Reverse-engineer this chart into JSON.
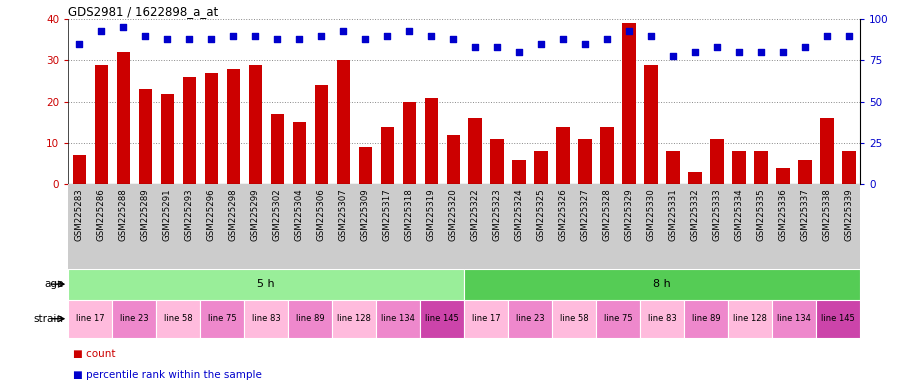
{
  "title": "GDS2981 / 1622898_a_at",
  "samples": [
    "GSM225283",
    "GSM225286",
    "GSM225288",
    "GSM225289",
    "GSM225291",
    "GSM225293",
    "GSM225296",
    "GSM225298",
    "GSM225299",
    "GSM225302",
    "GSM225304",
    "GSM225306",
    "GSM225307",
    "GSM225309",
    "GSM225317",
    "GSM225318",
    "GSM225319",
    "GSM225320",
    "GSM225322",
    "GSM225323",
    "GSM225324",
    "GSM225325",
    "GSM225326",
    "GSM225327",
    "GSM225328",
    "GSM225329",
    "GSM225330",
    "GSM225331",
    "GSM225332",
    "GSM225333",
    "GSM225334",
    "GSM225335",
    "GSM225336",
    "GSM225337",
    "GSM225338",
    "GSM225339"
  ],
  "counts": [
    7,
    29,
    32,
    23,
    22,
    26,
    27,
    28,
    29,
    17,
    15,
    24,
    30,
    9,
    14,
    20,
    21,
    12,
    16,
    11,
    6,
    8,
    14,
    11,
    14,
    39,
    29,
    8,
    3,
    11,
    8,
    8,
    4,
    6,
    16,
    8
  ],
  "percentile": [
    85,
    93,
    95,
    90,
    88,
    88,
    88,
    90,
    90,
    88,
    88,
    90,
    93,
    88,
    90,
    93,
    90,
    88,
    83,
    83,
    80,
    85,
    88,
    85,
    88,
    93,
    90,
    78,
    80,
    83,
    80,
    80,
    80,
    83,
    90,
    90
  ],
  "bar_color": "#cc0000",
  "dot_color": "#0000cc",
  "ylim_left": [
    0,
    40
  ],
  "ylim_right": [
    0,
    100
  ],
  "yticks_left": [
    0,
    10,
    20,
    30,
    40
  ],
  "yticks_right": [
    0,
    25,
    50,
    75,
    100
  ],
  "age_groups": [
    {
      "label": "5 h",
      "start": 0,
      "end": 18,
      "color": "#99ee99"
    },
    {
      "label": "8 h",
      "start": 18,
      "end": 36,
      "color": "#55cc55"
    }
  ],
  "strain_groups": [
    {
      "label": "line 17",
      "start": 0,
      "end": 2,
      "color": "#ffbbdd"
    },
    {
      "label": "line 23",
      "start": 2,
      "end": 4,
      "color": "#ee88cc"
    },
    {
      "label": "line 58",
      "start": 4,
      "end": 6,
      "color": "#ffbbdd"
    },
    {
      "label": "line 75",
      "start": 6,
      "end": 8,
      "color": "#ee88cc"
    },
    {
      "label": "line 83",
      "start": 8,
      "end": 10,
      "color": "#ffbbdd"
    },
    {
      "label": "line 89",
      "start": 10,
      "end": 12,
      "color": "#ee88cc"
    },
    {
      "label": "line 128",
      "start": 12,
      "end": 14,
      "color": "#ffbbdd"
    },
    {
      "label": "line 134",
      "start": 14,
      "end": 16,
      "color": "#ee88cc"
    },
    {
      "label": "line 145",
      "start": 16,
      "end": 18,
      "color": "#cc44aa"
    },
    {
      "label": "line 17",
      "start": 18,
      "end": 20,
      "color": "#ffbbdd"
    },
    {
      "label": "line 23",
      "start": 20,
      "end": 22,
      "color": "#ee88cc"
    },
    {
      "label": "line 58",
      "start": 22,
      "end": 24,
      "color": "#ffbbdd"
    },
    {
      "label": "line 75",
      "start": 24,
      "end": 26,
      "color": "#ee88cc"
    },
    {
      "label": "line 83",
      "start": 26,
      "end": 28,
      "color": "#ffbbdd"
    },
    {
      "label": "line 89",
      "start": 28,
      "end": 30,
      "color": "#ee88cc"
    },
    {
      "label": "line 128",
      "start": 30,
      "end": 32,
      "color": "#ffbbdd"
    },
    {
      "label": "line 134",
      "start": 32,
      "end": 34,
      "color": "#ee88cc"
    },
    {
      "label": "line 145",
      "start": 34,
      "end": 36,
      "color": "#cc44aa"
    }
  ],
  "legend_count_color": "#cc0000",
  "legend_percentile_color": "#0000cc",
  "bg_color": "#ffffff",
  "grid_color": "#888888",
  "tick_bg_color": "#cccccc"
}
